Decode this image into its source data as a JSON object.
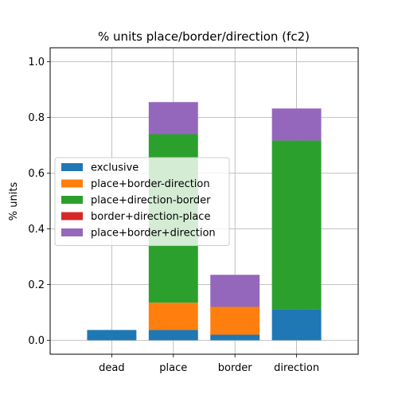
{
  "chart_data": {
    "type": "bar",
    "stacked": true,
    "title": "% units place/border/direction (fc2)",
    "xlabel": "",
    "ylabel": "% units",
    "categories": [
      "dead",
      "place",
      "border",
      "direction"
    ],
    "series": [
      {
        "name": "exclusive",
        "color": "#1f77b4",
        "values": [
          0.037,
          0.037,
          0.02,
          0.112
        ]
      },
      {
        "name": "place+border-direction",
        "color": "#ff7f0e",
        "values": [
          0.0,
          0.098,
          0.1,
          0.0
        ]
      },
      {
        "name": "place+direction-border",
        "color": "#2ca02c",
        "values": [
          0.0,
          0.605,
          0.0,
          0.605
        ]
      },
      {
        "name": "border+direction-place",
        "color": "#d62728",
        "values": [
          0.0,
          0.0,
          0.0,
          0.0
        ]
      },
      {
        "name": "place+border+direction",
        "color": "#9467bd",
        "values": [
          0.0,
          0.115,
          0.115,
          0.115
        ]
      }
    ],
    "ylim": [
      -0.05,
      1.05
    ],
    "yticks": [
      0.0,
      0.2,
      0.4,
      0.6,
      0.8,
      1.0
    ],
    "ytick_labels": [
      "0.0",
      "0.2",
      "0.4",
      "0.6",
      "0.8",
      "1.0"
    ],
    "grid": true,
    "legend_position": "center-left"
  }
}
